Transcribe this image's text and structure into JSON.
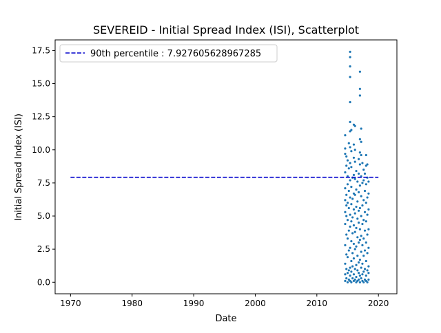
{
  "chart_data": {
    "type": "scatter",
    "title": "SEVEREID - Initial Spread Index (ISI), Scatterplot",
    "xlabel": "Date",
    "ylabel": "Initial Spread Index (ISI)",
    "x_axis_type": "date",
    "xlim": [
      1967.5,
      2023
    ],
    "ylim": [
      -0.87,
      18.3
    ],
    "xticks": [
      1970,
      1980,
      1990,
      2000,
      2010,
      2020
    ],
    "xtick_labels": [
      "1970",
      "1980",
      "1990",
      "2000",
      "2010",
      "2020"
    ],
    "yticks": [
      0.0,
      2.5,
      5.0,
      7.5,
      10.0,
      12.5,
      15.0,
      17.5
    ],
    "ytick_labels": [
      "0.0",
      "2.5",
      "5.0",
      "7.5",
      "10.0",
      "12.5",
      "15.0",
      "17.5"
    ],
    "grid": false,
    "legend": {
      "position": "upper left",
      "entries": [
        "90th percentile : 7.927605628967285"
      ]
    },
    "reference_line": {
      "label": "90th percentile : 7.927605628967285",
      "y": 7.927605628967285,
      "x_start": 1970,
      "x_end": 2020,
      "style": "dashed",
      "color": "#0000cc"
    },
    "series": [
      {
        "marker_color": "#1f77b4",
        "points": [
          [
            2014.6,
            0.1
          ],
          [
            2014.6,
            0.6
          ],
          [
            2014.6,
            1.4
          ],
          [
            2014.6,
            2.8
          ],
          [
            2014.6,
            4.4
          ],
          [
            2014.6,
            5.3
          ],
          [
            2014.6,
            6.2
          ],
          [
            2014.6,
            7.1
          ],
          [
            2014.6,
            8.3
          ],
          [
            2014.6,
            9.7
          ],
          [
            2014.6,
            10.1
          ],
          [
            2014.6,
            11.1
          ],
          [
            2014.8,
            0.3
          ],
          [
            2014.8,
            1.0
          ],
          [
            2014.8,
            2.1
          ],
          [
            2014.8,
            3.6
          ],
          [
            2014.8,
            5.0
          ],
          [
            2014.8,
            5.8
          ],
          [
            2014.8,
            6.6
          ],
          [
            2014.8,
            8.8
          ],
          [
            2014.8,
            9.5
          ],
          [
            2015.0,
            0.0
          ],
          [
            2015.0,
            0.7
          ],
          [
            2015.0,
            1.9
          ],
          [
            2015.0,
            3.3
          ],
          [
            2015.0,
            4.7
          ],
          [
            2015.0,
            6.0
          ],
          [
            2015.0,
            7.4
          ],
          [
            2015.0,
            8.0
          ],
          [
            2015.0,
            9.2
          ],
          [
            2015.2,
            0.2
          ],
          [
            2015.2,
            0.9
          ],
          [
            2015.2,
            2.4
          ],
          [
            2015.2,
            3.9
          ],
          [
            2015.2,
            5.6
          ],
          [
            2015.2,
            6.9
          ],
          [
            2015.2,
            8.6
          ],
          [
            2015.2,
            10.5
          ],
          [
            2015.4,
            0.1
          ],
          [
            2015.4,
            0.5
          ],
          [
            2015.4,
            1.1
          ],
          [
            2015.4,
            2.6
          ],
          [
            2015.4,
            4.2
          ],
          [
            2015.4,
            5.1
          ],
          [
            2015.4,
            6.4
          ],
          [
            2015.4,
            7.7
          ],
          [
            2015.4,
            9.0
          ],
          [
            2015.4,
            10.2
          ],
          [
            2015.4,
            11.4
          ],
          [
            2015.4,
            12.1
          ],
          [
            2015.4,
            13.6
          ],
          [
            2015.4,
            15.5
          ],
          [
            2015.4,
            16.3
          ],
          [
            2015.4,
            17.0
          ],
          [
            2015.4,
            17.4
          ],
          [
            2015.6,
            0.0
          ],
          [
            2015.6,
            0.8
          ],
          [
            2015.6,
            1.6
          ],
          [
            2015.6,
            3.1
          ],
          [
            2015.6,
            4.6
          ],
          [
            2015.6,
            5.9
          ],
          [
            2015.6,
            7.2
          ],
          [
            2015.6,
            8.7
          ],
          [
            2015.6,
            9.9
          ],
          [
            2015.6,
            11.5
          ],
          [
            2015.8,
            0.3
          ],
          [
            2015.8,
            1.2
          ],
          [
            2015.8,
            2.2
          ],
          [
            2015.8,
            3.7
          ],
          [
            2015.8,
            4.9
          ],
          [
            2015.8,
            6.3
          ],
          [
            2015.8,
            7.9
          ],
          [
            2016.0,
            0.1
          ],
          [
            2016.0,
            0.6
          ],
          [
            2016.0,
            1.8
          ],
          [
            2016.0,
            2.9
          ],
          [
            2016.0,
            4.3
          ],
          [
            2016.0,
            5.5
          ],
          [
            2016.0,
            6.7
          ],
          [
            2016.0,
            8.1
          ],
          [
            2016.0,
            9.4
          ],
          [
            2016.0,
            10.4
          ],
          [
            2016.0,
            11.9
          ],
          [
            2016.2,
            0.2
          ],
          [
            2016.2,
            1.0
          ],
          [
            2016.2,
            2.5
          ],
          [
            2016.2,
            3.8
          ],
          [
            2016.2,
            5.2
          ],
          [
            2016.2,
            6.6
          ],
          [
            2016.2,
            7.8
          ],
          [
            2016.2,
            9.1
          ],
          [
            2016.2,
            10.0
          ],
          [
            2016.2,
            11.8
          ],
          [
            2016.4,
            0.0
          ],
          [
            2016.4,
            0.4
          ],
          [
            2016.4,
            1.3
          ],
          [
            2016.4,
            2.7
          ],
          [
            2016.4,
            4.1
          ],
          [
            2016.4,
            5.7
          ],
          [
            2016.4,
            7.0
          ],
          [
            2016.4,
            8.4
          ],
          [
            2016.6,
            0.1
          ],
          [
            2016.6,
            0.9
          ],
          [
            2016.6,
            2.0
          ],
          [
            2016.6,
            3.4
          ],
          [
            2016.6,
            4.8
          ],
          [
            2016.6,
            6.1
          ],
          [
            2016.6,
            7.6
          ],
          [
            2016.8,
            0.2
          ],
          [
            2016.8,
            0.7
          ],
          [
            2016.8,
            1.5
          ],
          [
            2016.8,
            3.0
          ],
          [
            2016.8,
            4.5
          ],
          [
            2016.8,
            5.4
          ],
          [
            2016.8,
            6.8
          ],
          [
            2016.8,
            8.2
          ],
          [
            2016.8,
            9.3
          ],
          [
            2017.0,
            0.0
          ],
          [
            2017.0,
            0.5
          ],
          [
            2017.0,
            1.7
          ],
          [
            2017.0,
            3.2
          ],
          [
            2017.0,
            4.0
          ],
          [
            2017.0,
            5.6
          ],
          [
            2017.0,
            7.3
          ],
          [
            2017.0,
            8.9
          ],
          [
            2017.0,
            9.8
          ],
          [
            2017.0,
            10.8
          ],
          [
            2017.0,
            14.1
          ],
          [
            2017.0,
            14.6
          ],
          [
            2017.0,
            15.9
          ],
          [
            2017.2,
            0.3
          ],
          [
            2017.2,
            1.1
          ],
          [
            2017.2,
            2.3
          ],
          [
            2017.2,
            3.5
          ],
          [
            2017.2,
            5.0
          ],
          [
            2017.2,
            6.5
          ],
          [
            2017.2,
            8.0
          ],
          [
            2017.2,
            9.6
          ],
          [
            2017.2,
            10.6
          ],
          [
            2017.2,
            11.6
          ],
          [
            2017.4,
            0.1
          ],
          [
            2017.4,
            0.6
          ],
          [
            2017.4,
            1.4
          ],
          [
            2017.4,
            2.8
          ],
          [
            2017.4,
            4.4
          ],
          [
            2017.4,
            5.8
          ],
          [
            2017.4,
            7.5
          ],
          [
            2017.4,
            9.0
          ],
          [
            2017.6,
            0.0
          ],
          [
            2017.6,
            0.8
          ],
          [
            2017.6,
            2.0
          ],
          [
            2017.6,
            3.3
          ],
          [
            2017.6,
            4.7
          ],
          [
            2017.6,
            6.2
          ],
          [
            2017.6,
            7.7
          ],
          [
            2017.6,
            8.5
          ],
          [
            2017.8,
            0.2
          ],
          [
            2017.8,
            1.0
          ],
          [
            2017.8,
            2.4
          ],
          [
            2017.8,
            3.9
          ],
          [
            2017.8,
            5.3
          ],
          [
            2017.8,
            6.9
          ],
          [
            2017.8,
            8.2
          ],
          [
            2018.0,
            0.1
          ],
          [
            2018.0,
            0.5
          ],
          [
            2018.0,
            1.6
          ],
          [
            2018.0,
            3.0
          ],
          [
            2018.0,
            4.6
          ],
          [
            2018.0,
            6.0
          ],
          [
            2018.0,
            7.4
          ],
          [
            2018.0,
            8.8
          ],
          [
            2018.0,
            9.6
          ],
          [
            2018.2,
            0.0
          ],
          [
            2018.2,
            0.9
          ],
          [
            2018.2,
            2.2
          ],
          [
            2018.2,
            3.6
          ],
          [
            2018.2,
            5.1
          ],
          [
            2018.2,
            6.4
          ],
          [
            2018.2,
            7.9
          ],
          [
            2018.2,
            8.9
          ],
          [
            2018.4,
            0.2
          ],
          [
            2018.4,
            0.7
          ],
          [
            2018.4,
            1.2
          ],
          [
            2018.4,
            2.6
          ],
          [
            2018.4,
            4.0
          ],
          [
            2018.4,
            5.5
          ],
          [
            2018.4,
            6.7
          ],
          [
            2018.4,
            7.6
          ]
        ]
      }
    ]
  }
}
